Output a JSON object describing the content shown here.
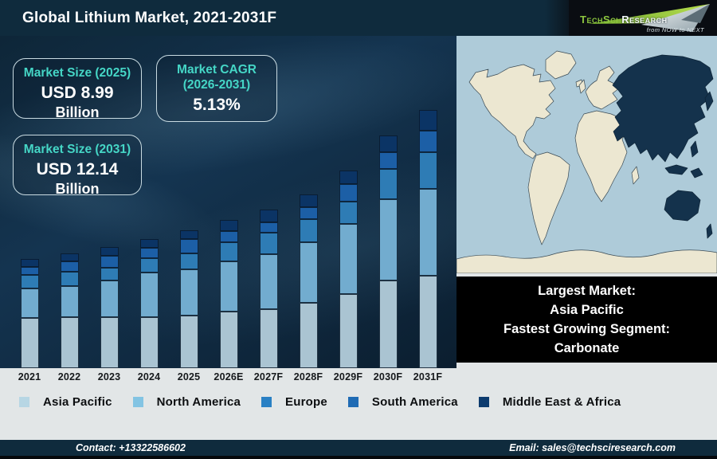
{
  "header": {
    "title": "Global Lithium Market, 2021-2031F",
    "logo": {
      "brand_primary": "TechSci",
      "brand_secondary": "Research",
      "tagline": "from NOW to NEXT"
    }
  },
  "stat_boxes": {
    "market_size_2025": {
      "label": "Market Size (2025)",
      "value": "USD 8.99",
      "unit": "Billion"
    },
    "market_cagr": {
      "label": "Market CAGR",
      "sublabel": "(2026-2031)",
      "value": "5.13%"
    },
    "market_size_2031": {
      "label": "Market Size (2031)",
      "value": "USD 12.14",
      "unit": "Billion"
    }
  },
  "chart_data": {
    "type": "bar",
    "stacked": true,
    "title": "Global Lithium Market, 2021-2031F",
    "xlabel": "",
    "ylabel": "",
    "y_axis_visible": false,
    "grid": false,
    "legend_position": "bottom",
    "value_unit": "relative height (no numeric y-axis shown; anchors: 2025 = USD 8.99 Billion, 2031 = USD 12.14 Billion)",
    "categories": [
      "2021",
      "2022",
      "2023",
      "2024",
      "2025",
      "2026E",
      "2027F",
      "2028F",
      "2029F",
      "2030F",
      "2031F"
    ],
    "series": [
      {
        "name": "Asia Pacific",
        "color": "#aac4d2",
        "values": [
          63,
          64,
          64,
          64,
          66,
          71,
          74,
          82,
          93,
          110,
          116
        ]
      },
      {
        "name": "North America",
        "color": "#72accf",
        "values": [
          37,
          39,
          46,
          56,
          58,
          63,
          69,
          76,
          88,
          102,
          109
        ]
      },
      {
        "name": "Europe",
        "color": "#2e7cb5",
        "values": [
          17,
          18,
          16,
          18,
          20,
          24,
          27,
          29,
          28,
          38,
          46
        ]
      },
      {
        "name": "South America",
        "color": "#1c5fa6",
        "values": [
          10,
          13,
          15,
          13,
          18,
          14,
          13,
          15,
          22,
          21,
          27
        ]
      },
      {
        "name": "Middle East & Africa",
        "color": "#0b3465",
        "values": [
          10,
          10,
          11,
          11,
          11,
          14,
          16,
          16,
          17,
          21,
          26
        ]
      }
    ]
  },
  "map": {
    "highlighted_region": "Asia Pacific",
    "ocean_color": "#aecbd9",
    "land_color": "#ece7d1",
    "highlight_color": "#14324c"
  },
  "info_box": {
    "line1": "Largest Market:",
    "line2": "Asia Pacific",
    "line3": "Fastest Growing Segment:",
    "line4": "Carbonate"
  },
  "legend": {
    "items": [
      {
        "label": "Asia Pacific",
        "color": "#b7d6e4"
      },
      {
        "label": "North America",
        "color": "#83c4e3"
      },
      {
        "label": "Europe",
        "color": "#2980c4"
      },
      {
        "label": "South America",
        "color": "#1f6bb4"
      },
      {
        "label": "Middle East & Africa",
        "color": "#0c3b6e"
      }
    ]
  },
  "footer": {
    "contact": "Contact: +13322586602",
    "email": "Email: sales@techsciresearch.com"
  }
}
